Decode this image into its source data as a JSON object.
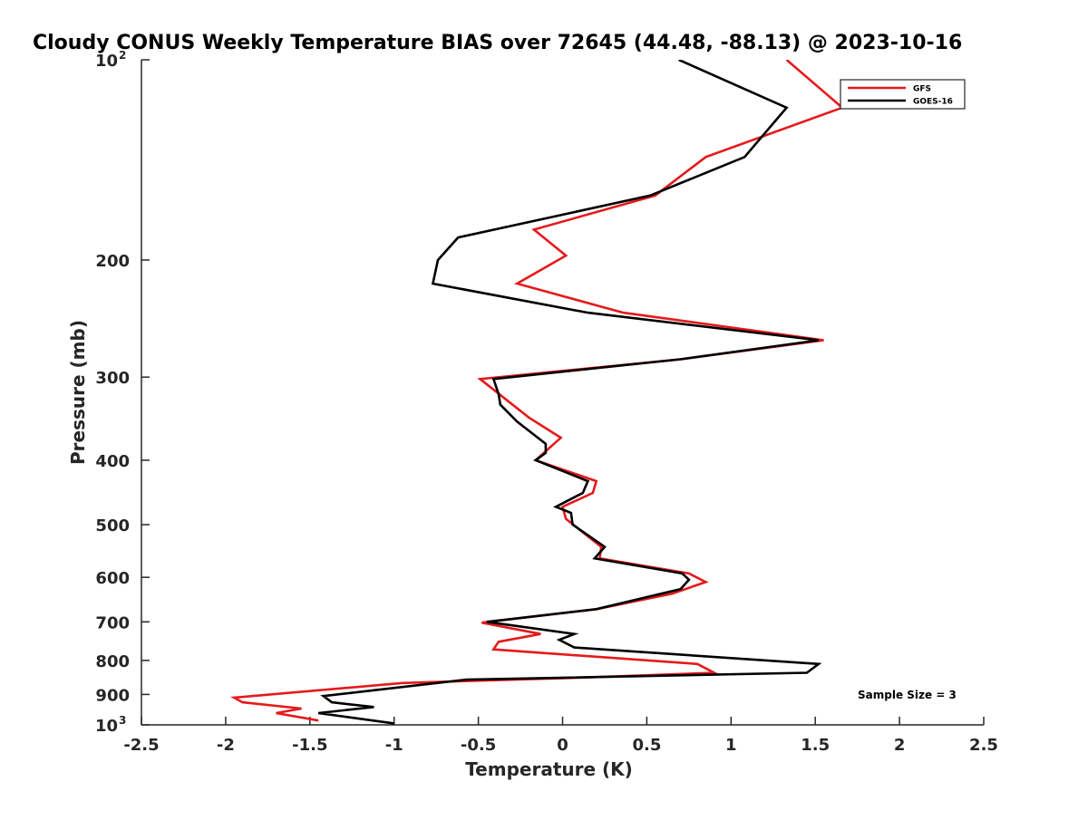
{
  "chart_data": {
    "type": "line",
    "title": "Cloudy CONUS Weekly Temperature BIAS over 72645 (44.48, -88.13) @ 2023-10-16",
    "xlabel": "Temperature (K)",
    "ylabel": "Pressure (mb)",
    "xlim": [
      -2.5,
      2.5
    ],
    "ylim": [
      100,
      1000
    ],
    "y_scale": "log",
    "y_reversed": true,
    "x_ticks": [
      "-2.5",
      "-2",
      "-1.5",
      "-1",
      "-0.5",
      "0",
      "0.5",
      "1",
      "1.5",
      "2",
      "2.5"
    ],
    "y_ticks": [
      {
        "value": 100,
        "label": "10",
        "exp": "2"
      },
      {
        "value": 200,
        "label": "200"
      },
      {
        "value": 300,
        "label": "300"
      },
      {
        "value": 400,
        "label": "400"
      },
      {
        "value": 500,
        "label": "500"
      },
      {
        "value": 600,
        "label": "600"
      },
      {
        "value": 700,
        "label": "700"
      },
      {
        "value": 800,
        "label": "800"
      },
      {
        "value": 900,
        "label": "900"
      },
      {
        "value": 1000,
        "label": "10",
        "exp": "3"
      }
    ],
    "grid": false,
    "legend_position": "top-right",
    "annotation": "Sample Size = 3",
    "series": [
      {
        "name": "GFS",
        "color": "#e41a1c",
        "points": [
          [
            1.33,
            100
          ],
          [
            1.66,
            118
          ],
          [
            0.85,
            140
          ],
          [
            0.55,
            160
          ],
          [
            -0.17,
            180
          ],
          [
            0.02,
            197
          ],
          [
            -0.27,
            217
          ],
          [
            0.36,
            240
          ],
          [
            1.55,
            264
          ],
          [
            0.7,
            282
          ],
          [
            -0.49,
            302
          ],
          [
            -0.2,
            345
          ],
          [
            -0.01,
            370
          ],
          [
            -0.16,
            400
          ],
          [
            0.2,
            430
          ],
          [
            0.18,
            448
          ],
          [
            0.0,
            470
          ],
          [
            0.02,
            490
          ],
          [
            0.23,
            540
          ],
          [
            0.22,
            562
          ],
          [
            0.75,
            592
          ],
          [
            0.85,
            610
          ],
          [
            0.65,
            635
          ],
          [
            0.2,
            670
          ],
          [
            -0.48,
            702
          ],
          [
            -0.13,
            730
          ],
          [
            -0.38,
            750
          ],
          [
            -0.41,
            770
          ],
          [
            0.8,
            810
          ],
          [
            0.9,
            835
          ],
          [
            0.05,
            850
          ],
          [
            -0.95,
            865
          ],
          [
            -1.95,
            910
          ],
          [
            -1.9,
            925
          ],
          [
            -1.55,
            945
          ],
          [
            -1.7,
            960
          ],
          [
            -1.45,
            985
          ]
        ]
      },
      {
        "name": "GOES-16",
        "color": "#000000",
        "points": [
          [
            0.69,
            100
          ],
          [
            1.33,
            118
          ],
          [
            1.08,
            140
          ],
          [
            0.52,
            160
          ],
          [
            -0.62,
            185
          ],
          [
            -0.74,
            200
          ],
          [
            -0.77,
            217
          ],
          [
            0.15,
            240
          ],
          [
            1.52,
            264
          ],
          [
            0.7,
            282
          ],
          [
            -0.41,
            302
          ],
          [
            -0.38,
            318
          ],
          [
            -0.37,
            330
          ],
          [
            -0.27,
            350
          ],
          [
            -0.1,
            378
          ],
          [
            -0.1,
            390
          ],
          [
            -0.16,
            400
          ],
          [
            0.15,
            430
          ],
          [
            0.12,
            448
          ],
          [
            -0.04,
            470
          ],
          [
            0.05,
            480
          ],
          [
            0.06,
            500
          ],
          [
            0.25,
            540
          ],
          [
            0.19,
            562
          ],
          [
            0.71,
            592
          ],
          [
            0.75,
            605
          ],
          [
            0.7,
            625
          ],
          [
            0.2,
            670
          ],
          [
            -0.45,
            700
          ],
          [
            0.07,
            730
          ],
          [
            -0.02,
            745
          ],
          [
            0.07,
            765
          ],
          [
            1.52,
            810
          ],
          [
            1.45,
            835
          ],
          [
            -0.57,
            855
          ],
          [
            -1.42,
            905
          ],
          [
            -1.37,
            925
          ],
          [
            -1.12,
            940
          ],
          [
            -1.45,
            960
          ],
          [
            -1.0,
            995
          ]
        ]
      }
    ]
  }
}
